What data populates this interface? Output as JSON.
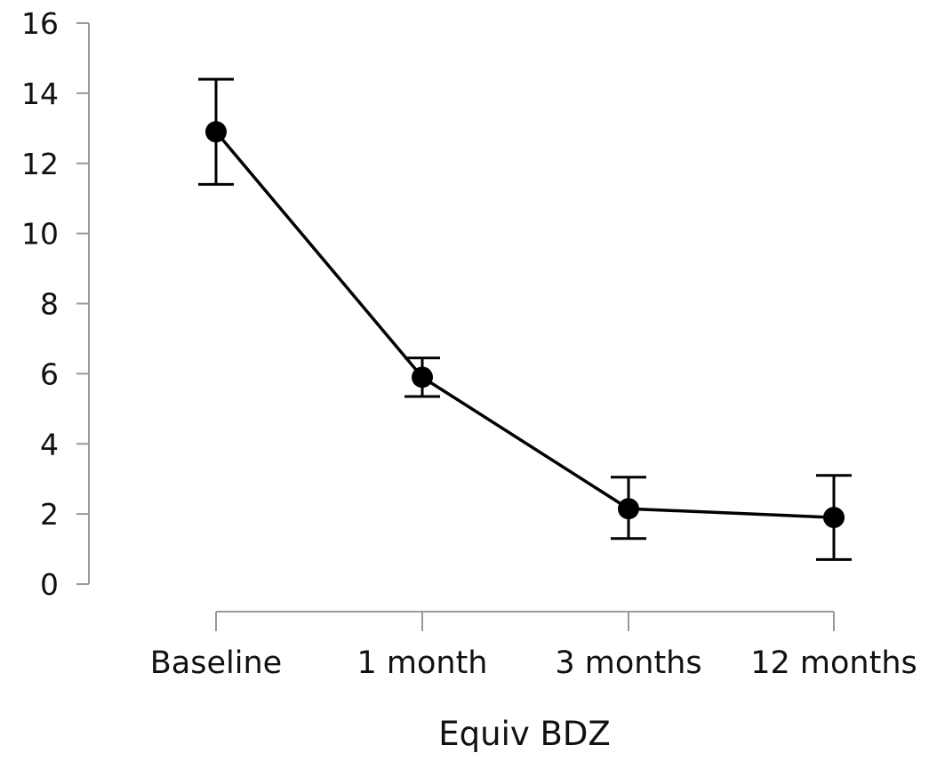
{
  "chart_data": {
    "type": "line",
    "title": "",
    "xlabel": "Equiv BDZ",
    "ylabel": "",
    "categories": [
      "Baseline",
      "1 month",
      "3 months",
      "12 months"
    ],
    "ylim": [
      0,
      16
    ],
    "yticks": [
      0,
      2,
      4,
      6,
      8,
      10,
      12,
      14,
      16
    ],
    "grid": false,
    "series": [
      {
        "values": [
          12.9,
          5.9,
          2.15,
          1.9
        ],
        "error_low": [
          11.4,
          5.35,
          1.3,
          0.7
        ],
        "error_high": [
          14.4,
          6.45,
          3.05,
          3.1
        ]
      }
    ],
    "colors": {
      "line": "#000000",
      "marker": "#000000",
      "axis": "#999999"
    }
  }
}
